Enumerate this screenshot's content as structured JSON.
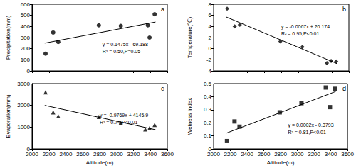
{
  "chart_data": [
    {
      "type": "scatter",
      "title": "a",
      "ylabel": "Precipitation(mm)",
      "tick_labels": "y",
      "x": [
        2160,
        2250,
        2310,
        2790,
        3050,
        3370,
        3390,
        3450
      ],
      "values": [
        155,
        345,
        260,
        410,
        405,
        410,
        300,
        510
      ],
      "trend_line": {
        "x": [
          2150,
          3460
        ],
        "y": [
          250,
          440
        ]
      },
      "annotations": [
        "y = 0.1475x - 69.188",
        "R² = 0.50,P=0.05"
      ],
      "xlim": [
        2000,
        3600
      ],
      "xticks": [
        2000,
        2200,
        2400,
        2600,
        2800,
        3000,
        3200,
        3400,
        3600
      ],
      "ylim": [
        0,
        600
      ],
      "yticks": [
        0,
        100,
        200,
        300,
        400,
        500,
        600
      ],
      "marker": "circle",
      "color": "#000000"
    },
    {
      "type": "scatter",
      "title": "b",
      "ylabel": "Temperature(℃)",
      "tick_labels": "y",
      "x": [
        2160,
        2250,
        2310,
        2790,
        3050,
        3340,
        3390,
        3450
      ],
      "values": [
        7.2,
        4.0,
        4.3,
        1.3,
        0.3,
        -2.6,
        -2.2,
        -2.3
      ],
      "trend_line": {
        "x": [
          2150,
          3460
        ],
        "y": [
          5.7,
          -2.7
        ]
      },
      "annotations": [
        "y = -0.0067x + 20.174",
        "R² = 0.95,P<0.01"
      ],
      "xlim": [
        2000,
        3600
      ],
      "xticks": [
        2000,
        2200,
        2400,
        2600,
        2800,
        3000,
        3200,
        3400,
        3600
      ],
      "ylim": [
        -4,
        8
      ],
      "yticks": [
        -4,
        -2,
        0,
        2,
        4,
        6,
        8
      ],
      "marker": "diamond",
      "color": "#000000"
    },
    {
      "type": "scatter",
      "title": "c",
      "xlabel": "Altitude(m)",
      "ylabel": "Evaporation(mm)",
      "x": [
        2160,
        2250,
        2310,
        2790,
        3050,
        3340,
        3390,
        3450
      ],
      "values": [
        2600,
        1680,
        1500,
        1470,
        1200,
        900,
        950,
        1100
      ],
      "trend_line": {
        "x": [
          2150,
          3460
        ],
        "y": [
          2000,
          880
        ]
      },
      "annotations": [
        "y = -0.9769x + 4145.9",
        "R² = 0.74,P<0.01"
      ],
      "xlim": [
        2000,
        3600
      ],
      "xticks": [
        2000,
        2200,
        2400,
        2600,
        2800,
        3000,
        3200,
        3400,
        3600
      ],
      "ylim": [
        0,
        3000
      ],
      "yticks": [
        0,
        1000,
        2000,
        3000
      ],
      "marker": "triangle",
      "color": "#000000"
    },
    {
      "type": "scatter",
      "title": "d",
      "xlabel": "Altitude(m)",
      "ylabel": "Wetness index",
      "x": [
        2160,
        2250,
        2310,
        2790,
        3050,
        3340,
        3390,
        3450
      ],
      "values": [
        0.06,
        0.21,
        0.17,
        0.28,
        0.35,
        0.47,
        0.32,
        0.46
      ],
      "trend_line": {
        "x": [
          2150,
          3460
        ],
        "y": [
          0.12,
          0.44
        ]
      },
      "annotations": [
        "y = 0.0002x - 0.3793",
        "R² = 0.81,P<0.01"
      ],
      "xlim": [
        2000,
        3600
      ],
      "xticks": [
        2000,
        2200,
        2400,
        2600,
        2800,
        3000,
        3200,
        3400,
        3600
      ],
      "ylim": [
        0,
        0.5
      ],
      "yticks": [
        0,
        0.1,
        0.2,
        0.3,
        0.4,
        0.5
      ],
      "marker": "square",
      "color": "#000000"
    }
  ]
}
